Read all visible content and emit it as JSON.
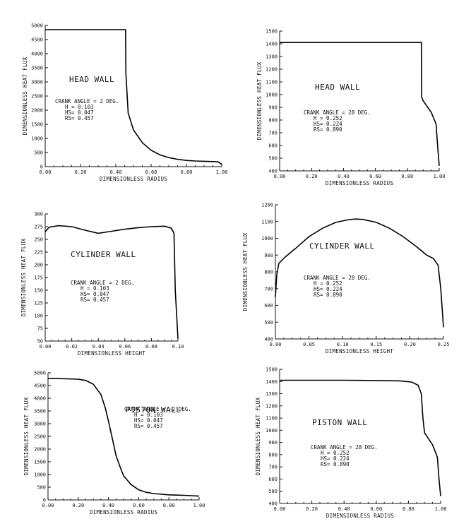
{
  "chart_data": [
    {
      "type": "line",
      "title": "HEAD WALL",
      "xlabel": "DIMENSIONLESS RADIUS",
      "ylabel": "DIMENSIONLESS HEAT FLUX",
      "xlim": [
        0,
        1.0
      ],
      "ylim": [
        0,
        5000
      ],
      "xticks": [
        "0.00",
        "0.20",
        "0.40",
        "0.60",
        "0.80",
        "1.00"
      ],
      "xtick_values": [
        0,
        0.2,
        0.4,
        0.6,
        0.8,
        1.0
      ],
      "yticks": [
        "0",
        "500",
        "1000",
        "1500",
        "2000",
        "2500",
        "3000",
        "3500",
        "4000",
        "4500",
        "5000"
      ],
      "ytick_values": [
        0,
        500,
        1000,
        1500,
        2000,
        2500,
        3000,
        3500,
        4000,
        4500,
        5000
      ],
      "params": [
        "CRANK ANGLE =  2 DEG.",
        "H = 0.103",
        "HS= 0.047",
        "RS= 0.457"
      ],
      "x": [
        0.0,
        0.1,
        0.2,
        0.3,
        0.4,
        0.455,
        0.457,
        0.47,
        0.5,
        0.55,
        0.6,
        0.65,
        0.7,
        0.75,
        0.8,
        0.85,
        0.9,
        0.95,
        0.98,
        1.0
      ],
      "y": [
        4850,
        4850,
        4850,
        4850,
        4850,
        4850,
        3300,
        1900,
        1300,
        850,
        580,
        420,
        320,
        260,
        220,
        200,
        190,
        180,
        170,
        80
      ]
    },
    {
      "type": "line",
      "title": "HEAD WALL",
      "xlabel": "DIMENSIONLESS RADIUS",
      "ylabel": "DIMENSIONLESS HEAT FLUX",
      "xlim": [
        0,
        1.0
      ],
      "ylim": [
        400,
        1500
      ],
      "xticks": [
        "0.00",
        "0.20",
        "0.40",
        "0.60",
        "0.80",
        "1.00"
      ],
      "xtick_values": [
        0,
        0.2,
        0.4,
        0.6,
        0.8,
        1.0
      ],
      "yticks": [
        "400",
        "500",
        "600",
        "700",
        "800",
        "900",
        "1000",
        "1100",
        "1200",
        "1300",
        "1400",
        "1500"
      ],
      "ytick_values": [
        400,
        500,
        600,
        700,
        800,
        900,
        1000,
        1100,
        1200,
        1300,
        1400,
        1500
      ],
      "params": [
        "CRANK ANGLE = 28 DEG.",
        "H = 0.252",
        "HS= 0.224",
        "RS= 0.890"
      ],
      "x": [
        0.0,
        0.2,
        0.4,
        0.6,
        0.8,
        0.888,
        0.89,
        0.9,
        0.95,
        0.98,
        0.99,
        1.0
      ],
      "y": [
        1410,
        1410,
        1410,
        1410,
        1410,
        1410,
        980,
        950,
        860,
        770,
        600,
        440
      ]
    },
    {
      "type": "line",
      "title": "CYLINDER WALL",
      "xlabel": "DIMENSIONLESS HEIGHT",
      "ylabel": "DIMENSIONLESS HEAT FLUX",
      "xlim": [
        0,
        0.1
      ],
      "ylim": [
        50,
        300
      ],
      "xticks": [
        "0.00",
        "0.02",
        "0.04",
        "0.06",
        "0.08",
        "0.10"
      ],
      "xtick_values": [
        0,
        0.02,
        0.04,
        0.06,
        0.08,
        0.1
      ],
      "yticks": [
        "50",
        "75",
        "100",
        "125",
        "150",
        "175",
        "200",
        "225",
        "250",
        "275",
        "300"
      ],
      "ytick_values": [
        50,
        75,
        100,
        125,
        150,
        175,
        200,
        225,
        250,
        275,
        300
      ],
      "params": [
        "CRANK ANGLE =  2 DEG.",
        "H = 0.103",
        "HS= 0.047",
        "RS= 0.457"
      ],
      "x": [
        0.0,
        0.003,
        0.01,
        0.02,
        0.03,
        0.04,
        0.05,
        0.06,
        0.07,
        0.08,
        0.09,
        0.095,
        0.097,
        0.098,
        0.1
      ],
      "y": [
        265,
        274,
        277,
        275,
        268,
        262,
        266,
        270,
        273,
        275,
        276,
        272,
        262,
        150,
        55
      ]
    },
    {
      "type": "line",
      "title": "CYLINDER WALL",
      "xlabel": "DIMENSIONLESS HEIGHT",
      "ylabel": "DIMENSIONLESS HEAT FLUX",
      "xlim": [
        0,
        0.25
      ],
      "ylim": [
        400,
        1200
      ],
      "xticks": [
        "0.00",
        "0.05",
        "0.10",
        "0.15",
        "0.20",
        "0.25"
      ],
      "xtick_values": [
        0,
        0.05,
        0.1,
        0.15,
        0.2,
        0.25
      ],
      "yticks": [
        "400",
        "500",
        "600",
        "700",
        "800",
        "900",
        "1000",
        "1100",
        "1200"
      ],
      "ytick_values": [
        400,
        500,
        600,
        700,
        800,
        900,
        1000,
        1100,
        1200
      ],
      "params": [
        "CRANK ANGLE = 28 DEG.",
        "H = 0.252",
        "HS= 0.224",
        "RS= 0.890"
      ],
      "x": [
        0.0,
        0.002,
        0.005,
        0.015,
        0.03,
        0.05,
        0.07,
        0.09,
        0.11,
        0.12,
        0.13,
        0.15,
        0.17,
        0.19,
        0.21,
        0.225,
        0.235,
        0.242,
        0.246,
        0.25
      ],
      "y": [
        650,
        780,
        850,
        890,
        940,
        1010,
        1060,
        1095,
        1112,
        1115,
        1113,
        1095,
        1060,
        1010,
        950,
        900,
        880,
        840,
        700,
        470
      ]
    },
    {
      "type": "line",
      "title": "PISTON WALL",
      "xlabel": "DIMENSIONLESS RADIUS",
      "ylabel": "DIMENSIONLESS HEAT FLUX",
      "xlim": [
        0,
        1.0
      ],
      "ylim": [
        0,
        5000
      ],
      "xticks": [
        "0.00",
        "0.20",
        "0.40",
        "0.60",
        "0.80",
        "1.00"
      ],
      "xtick_values": [
        0,
        0.2,
        0.4,
        0.6,
        0.8,
        1.0
      ],
      "yticks": [
        "0",
        "500",
        "1000",
        "1500",
        "2000",
        "2500",
        "3000",
        "3500",
        "4000",
        "4500",
        "5000"
      ],
      "ytick_values": [
        0,
        500,
        1000,
        1500,
        2000,
        2500,
        3000,
        3500,
        4000,
        4500,
        5000
      ],
      "params": [
        "CRANK ANGLE = -2 DEG.",
        "H = 0.103",
        "HS= 0.047",
        "RS= 0.457"
      ],
      "x": [
        0.0,
        0.1,
        0.2,
        0.25,
        0.3,
        0.35,
        0.38,
        0.4,
        0.43,
        0.45,
        0.48,
        0.5,
        0.55,
        0.6,
        0.65,
        0.7,
        0.8,
        0.9,
        1.0
      ],
      "y": [
        4780,
        4770,
        4750,
        4700,
        4550,
        4150,
        3600,
        3100,
        2300,
        1750,
        1250,
        950,
        600,
        400,
        300,
        250,
        200,
        180,
        150
      ]
    },
    {
      "type": "line",
      "title": "PISTON WALL",
      "xlabel": "DIMENSIONLESS RADIUS",
      "ylabel": "DIMENSIONLESS HEAT FLUX",
      "xlim": [
        0,
        1.0
      ],
      "ylim": [
        400,
        1500
      ],
      "xticks": [
        "0.00",
        "0.20",
        "0.40",
        "0.60",
        "0.80",
        "1.00"
      ],
      "xtick_values": [
        0,
        0.2,
        0.4,
        0.6,
        0.8,
        1.0
      ],
      "yticks": [
        "400",
        "500",
        "600",
        "700",
        "800",
        "900",
        "1000",
        "1100",
        "1200",
        "1300",
        "1400",
        "1500"
      ],
      "ytick_values": [
        400,
        500,
        600,
        700,
        800,
        900,
        1000,
        1100,
        1200,
        1300,
        1400,
        1500
      ],
      "params": [
        "CRANK ANGLE = 28 DEG.",
        "H = 0.252",
        "HS= 0.224",
        "RS= 0.890"
      ],
      "x": [
        0.0,
        0.2,
        0.4,
        0.6,
        0.75,
        0.82,
        0.86,
        0.88,
        0.89,
        0.9,
        0.95,
        0.98,
        0.99,
        1.0
      ],
      "y": [
        1410,
        1410,
        1410,
        1408,
        1405,
        1395,
        1370,
        1300,
        1100,
        980,
        880,
        780,
        600,
        460
      ]
    }
  ]
}
